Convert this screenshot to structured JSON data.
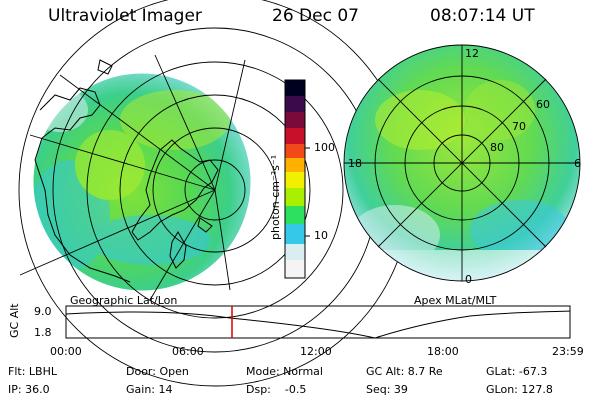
{
  "header": {
    "title": "Ultraviolet Imager",
    "date": "26 Dec 07",
    "time": "08:07:14 UT"
  },
  "left_panel": {
    "caption": "Geographic Lat/Lon"
  },
  "right_panel": {
    "caption": "Apex MLat/MLT",
    "mlt_labels": {
      "top": "12",
      "left": "18",
      "right": "6",
      "bottom": "0"
    },
    "lat_labels": [
      "60",
      "70",
      "80"
    ]
  },
  "colorbar": {
    "label": "photon cm⁻²s⁻¹",
    "ticks": [
      "100",
      "10"
    ],
    "colors": [
      "#000020",
      "#3a0a4a",
      "#7a0a3a",
      "#c8102a",
      "#f04a1a",
      "#ffb000",
      "#f0f000",
      "#a8f000",
      "#2ee060",
      "#36c8e8",
      "#d8eef0",
      "#f4f4f4"
    ]
  },
  "timeline": {
    "ylabel": "GC Alt",
    "ytick_top": "9.0",
    "ytick_bottom": "1.8",
    "xticks": [
      "00:00",
      "06:00",
      "12:00",
      "18:00",
      "23:59"
    ],
    "marker_time": "08:07",
    "marker_color": "#e00000"
  },
  "info": {
    "row1": [
      "Flt: LBHL",
      "Door: Open",
      "Mode: Normal",
      "GC Alt: 8.7 Re",
      "GLat: -67.3"
    ],
    "row2": [
      "IP: 36.0",
      "Gain: 14",
      "Dsp:    -0.5",
      "Seq: 39",
      "GLon: 127.8"
    ]
  }
}
